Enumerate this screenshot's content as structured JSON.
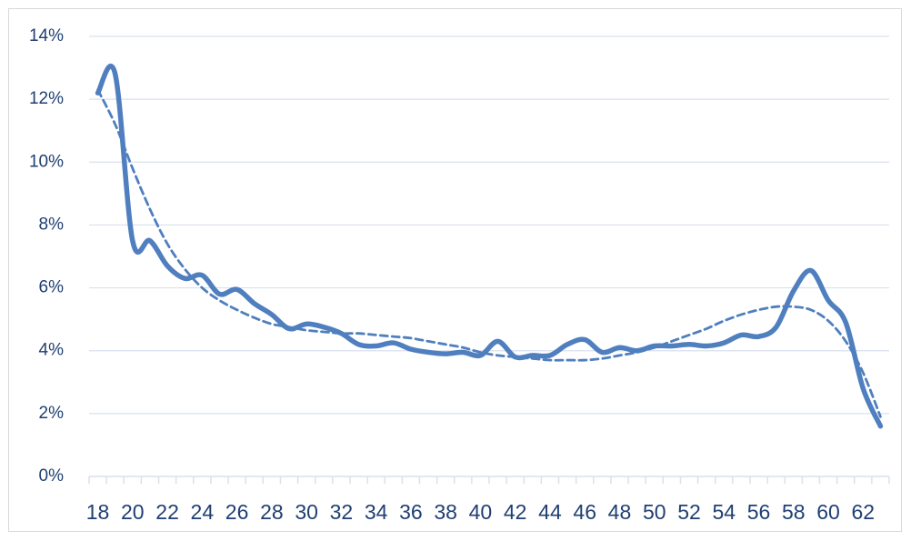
{
  "chart_data": {
    "type": "line",
    "categories": [
      18,
      null,
      20,
      null,
      22,
      null,
      24,
      null,
      26,
      null,
      28,
      null,
      30,
      null,
      32,
      null,
      34,
      null,
      36,
      null,
      38,
      null,
      40,
      null,
      42,
      null,
      44,
      null,
      46,
      null,
      48,
      null,
      50,
      null,
      52,
      null,
      54,
      null,
      56,
      null,
      58,
      null,
      60,
      null,
      62,
      null
    ],
    "series": [
      {
        "color": "#4f7fbf",
        "line_style": "solid",
        "values": [
          12.2,
          12.8,
          7.5,
          7.5,
          6.7,
          6.3,
          6.4,
          5.8,
          5.95,
          5.5,
          5.15,
          4.7,
          4.85,
          4.75,
          4.55,
          4.2,
          4.15,
          4.25,
          4.05,
          3.95,
          3.9,
          3.95,
          3.85,
          4.3,
          3.8,
          3.85,
          3.85,
          4.2,
          4.35,
          3.95,
          4.1,
          4.0,
          4.15,
          4.15,
          4.2,
          4.15,
          4.25,
          4.5,
          4.45,
          4.75,
          5.9,
          6.55,
          5.6,
          4.9,
          2.8,
          1.6
        ]
      },
      {
        "color": "#4f7fbf",
        "line_style": "dashed",
        "values": [
          12.3,
          11.2,
          9.8,
          8.5,
          7.4,
          6.6,
          6.0,
          5.6,
          5.3,
          5.05,
          4.85,
          4.75,
          4.65,
          4.6,
          4.55,
          4.55,
          4.5,
          4.45,
          4.4,
          4.3,
          4.2,
          4.1,
          3.95,
          3.85,
          3.8,
          3.75,
          3.7,
          3.7,
          3.7,
          3.75,
          3.85,
          3.95,
          4.1,
          4.3,
          4.5,
          4.7,
          4.95,
          5.15,
          5.3,
          5.4,
          5.4,
          5.3,
          4.95,
          4.3,
          3.3,
          1.9
        ]
      }
    ],
    "ylim": [
      0,
      14
    ],
    "yticks": [
      {
        "value": 0,
        "label": "0%"
      },
      {
        "value": 2,
        "label": "2%"
      },
      {
        "value": 4,
        "label": "4%"
      },
      {
        "value": 6,
        "label": "6%"
      },
      {
        "value": 8,
        "label": "8%"
      },
      {
        "value": 10,
        "label": "10%"
      },
      {
        "value": 12,
        "label": "12%"
      },
      {
        "value": 14,
        "label": "14%"
      }
    ],
    "grid": true
  }
}
